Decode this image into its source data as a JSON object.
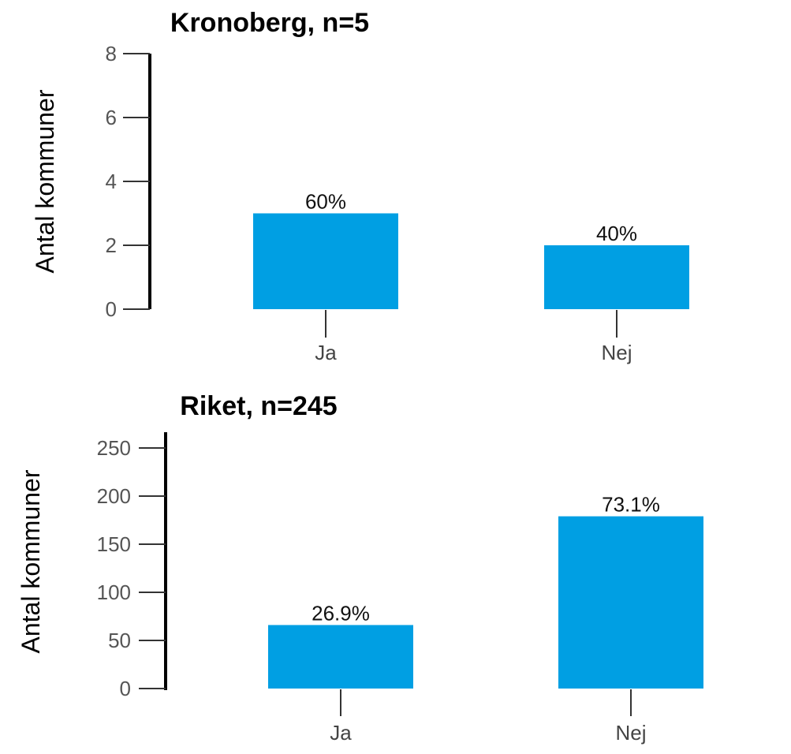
{
  "chart_data": [
    {
      "type": "bar",
      "title": "Kronoberg, n=5",
      "ylabel": "Antal kommuner",
      "categories": [
        "Ja",
        "Nej"
      ],
      "values": [
        3,
        2
      ],
      "data_labels": [
        "60%",
        "40%"
      ],
      "ylim": [
        0,
        8
      ],
      "yticks": [
        "0",
        "2",
        "4",
        "6",
        "8"
      ],
      "ytick_values": [
        0,
        2,
        4,
        6,
        8
      ],
      "grid": false,
      "bar_color": "#009fe3"
    },
    {
      "type": "bar",
      "title": "Riket, n=245",
      "ylabel": "Antal kommuner",
      "categories": [
        "Ja",
        "Nej"
      ],
      "values": [
        66,
        179
      ],
      "data_labels": [
        "26.9%",
        "73.1%"
      ],
      "ylim": [
        0,
        250
      ],
      "yticks": [
        "0",
        "50",
        "100",
        "150",
        "200",
        "250"
      ],
      "ytick_values": [
        0,
        50,
        100,
        150,
        200,
        250
      ],
      "grid": false,
      "bar_color": "#009fe3"
    }
  ]
}
